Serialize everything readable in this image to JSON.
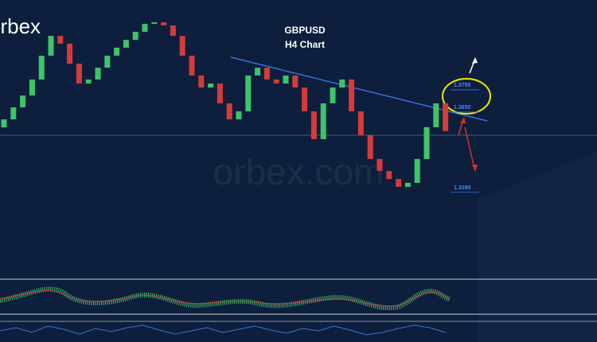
{
  "chart_data": {
    "type": "candlestick",
    "title": "GBPUSD",
    "subtitle": "H4 Chart",
    "logo": "orbex",
    "watermark": "orbex.com",
    "ylim": [
      1.2882,
      1.4132
    ],
    "up_color": "#3fc46a",
    "down_color": "#d43b3b",
    "open": [
      1.356,
      1.3596,
      1.365,
      1.3703,
      1.3775,
      1.3882,
      1.3971,
      1.3936,
      1.3846,
      1.3757,
      1.3775,
      1.3828,
      1.3882,
      1.3918,
      1.3953,
      1.3989,
      1.4025,
      1.4032,
      1.4018,
      1.3971,
      1.3882,
      1.3793,
      1.3739,
      1.3757,
      1.3668,
      1.3596,
      1.3632,
      1.3793,
      1.3828,
      1.3775,
      1.3757,
      1.3793,
      1.3739,
      1.3632,
      1.3507,
      1.3668,
      1.3739,
      1.3775,
      1.3632,
      1.3525,
      1.3418,
      1.3364,
      1.3328,
      1.3293,
      1.3311,
      1.3418,
      1.3561,
      1.3668
    ],
    "close": [
      1.3596,
      1.365,
      1.3703,
      1.3775,
      1.3882,
      1.3971,
      1.3936,
      1.3846,
      1.3757,
      1.3775,
      1.3828,
      1.3882,
      1.3918,
      1.3953,
      1.3989,
      1.4025,
      1.4032,
      1.4018,
      1.3971,
      1.3882,
      1.3793,
      1.3739,
      1.3757,
      1.3668,
      1.3596,
      1.3632,
      1.3793,
      1.3828,
      1.3775,
      1.3757,
      1.3793,
      1.3739,
      1.3632,
      1.3507,
      1.3668,
      1.3739,
      1.3775,
      1.3632,
      1.3525,
      1.3418,
      1.3364,
      1.3328,
      1.3293,
      1.3311,
      1.3418,
      1.3561,
      1.3668,
      1.3543
    ],
    "levels": [
      {
        "value": 1.375,
        "label": "1.3750"
      },
      {
        "value": 1.365,
        "label": "1.3650"
      },
      {
        "value": 1.329,
        "label": "1.3290"
      }
    ]
  }
}
